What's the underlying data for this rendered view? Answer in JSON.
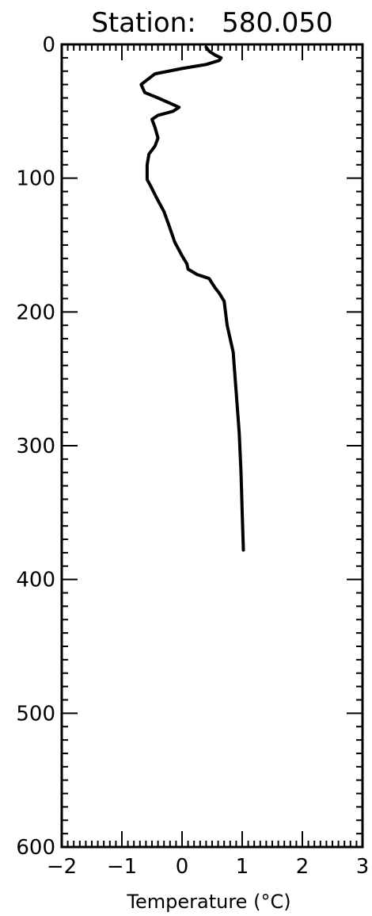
{
  "chart_data": {
    "type": "line",
    "title": "Station:   580.050",
    "xlabel": "Temperature (°C)",
    "ylabel": "",
    "xlim": [
      -2,
      3
    ],
    "ylim": [
      600,
      0
    ],
    "x_ticks": [
      "−2",
      "−1",
      "0",
      "1",
      "2",
      "3"
    ],
    "y_ticks": [
      "0",
      "100",
      "200",
      "300",
      "400",
      "500",
      "600"
    ],
    "series": [
      {
        "points": [
          [
            0.4,
            2
          ],
          [
            0.45,
            5
          ],
          [
            0.55,
            8
          ],
          [
            0.65,
            10
          ],
          [
            0.62,
            12
          ],
          [
            0.4,
            15
          ],
          [
            0.0,
            18
          ],
          [
            -0.45,
            22
          ],
          [
            -0.68,
            30
          ],
          [
            -0.62,
            36
          ],
          [
            -0.4,
            40
          ],
          [
            -0.2,
            44
          ],
          [
            -0.05,
            47
          ],
          [
            -0.15,
            50
          ],
          [
            -0.4,
            53
          ],
          [
            -0.5,
            56
          ],
          [
            -0.45,
            62
          ],
          [
            -0.4,
            70
          ],
          [
            -0.45,
            76
          ],
          [
            -0.55,
            82
          ],
          [
            -0.58,
            90
          ],
          [
            -0.58,
            96
          ],
          [
            -0.58,
            101
          ],
          [
            -0.52,
            106
          ],
          [
            -0.42,
            115
          ],
          [
            -0.3,
            125
          ],
          [
            -0.22,
            135
          ],
          [
            -0.12,
            148
          ],
          [
            0.0,
            158
          ],
          [
            0.08,
            164
          ],
          [
            0.1,
            168
          ],
          [
            0.25,
            172
          ],
          [
            0.45,
            175
          ],
          [
            0.55,
            182
          ],
          [
            0.62,
            186
          ],
          [
            0.7,
            192
          ],
          [
            0.75,
            210
          ],
          [
            0.85,
            230
          ],
          [
            0.9,
            260
          ],
          [
            0.95,
            290
          ],
          [
            0.98,
            320
          ],
          [
            1.0,
            350
          ],
          [
            1.02,
            378
          ]
        ]
      }
    ]
  }
}
